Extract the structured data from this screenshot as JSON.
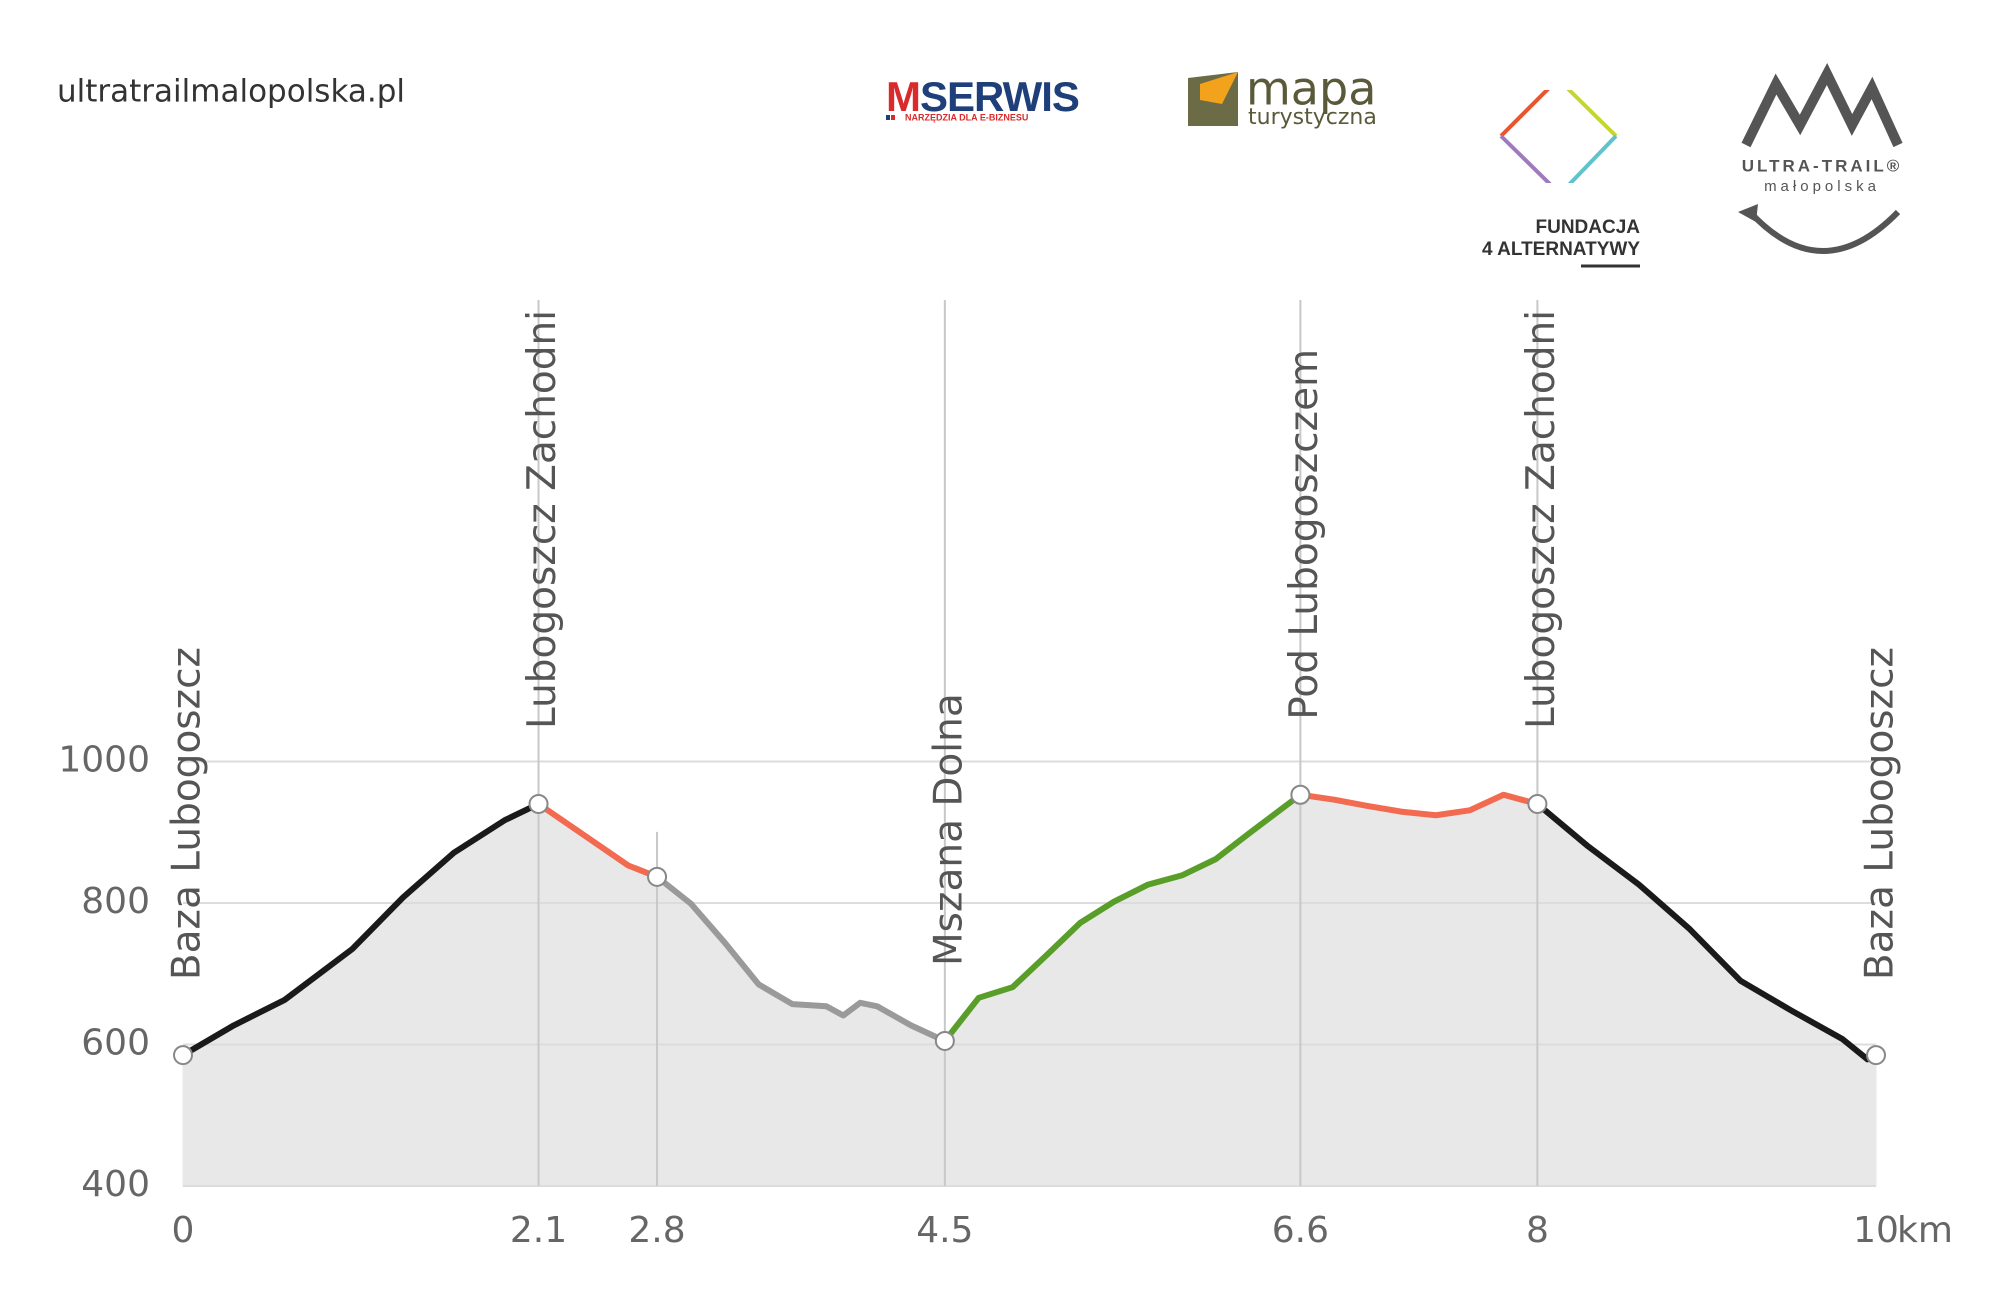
{
  "header": {
    "site": "ultratrailmalopolska.pl"
  },
  "logos": {
    "mserwis": {
      "initial": "M",
      "rest": "SERWIS",
      "tagline": "NARZĘDZIA DLA E-BIZNESU"
    },
    "mapa": {
      "title": "mapa",
      "subtitle": "turystyczna"
    },
    "fundacja": {
      "line1": "FUNDACJA",
      "line2": "4 ALTERNATYWY"
    },
    "ultratrail": {
      "title": "ULTRA-TRAIL®",
      "subtitle": "małopolska"
    }
  },
  "chart_data": {
    "type": "elevation-profile",
    "xlabel": "km",
    "xlim": [
      0,
      10
    ],
    "ylim": [
      400,
      1000
    ],
    "xticks": [
      0,
      2.1,
      2.8,
      4.5,
      6.6,
      8,
      10
    ],
    "yticks": [
      400,
      600,
      800,
      1000
    ],
    "grid": true,
    "area_color": "#e8e8e8",
    "segments": [
      {
        "color": "#1a1a1a",
        "x": [
          0,
          0.3,
          0.6,
          1.0,
          1.3,
          1.6,
          1.9,
          2.1
        ],
        "values": [
          585,
          627,
          663,
          735,
          808,
          871,
          917,
          940
        ]
      },
      {
        "color": "#f26a50",
        "x": [
          2.1,
          2.63,
          2.8
        ],
        "values": [
          940,
          853,
          837
        ]
      },
      {
        "color": "#9a9a9a",
        "x": [
          2.8,
          3.0,
          3.2,
          3.4,
          3.6,
          3.8,
          3.9,
          4.0,
          4.1,
          4.3,
          4.5
        ],
        "values": [
          837,
          799,
          744,
          685,
          657,
          654,
          641,
          659,
          654,
          627,
          605
        ]
      },
      {
        "color": "#5a9e2a",
        "x": [
          4.5,
          4.7,
          4.9,
          5.1,
          5.3,
          5.5,
          5.7,
          5.9,
          6.1,
          6.3,
          6.6
        ],
        "values": [
          605,
          666,
          681,
          726,
          772,
          802,
          826,
          839,
          862,
          899,
          953
        ]
      },
      {
        "color": "#f26a50",
        "x": [
          6.6,
          6.8,
          7.0,
          7.2,
          7.4,
          7.6,
          7.8,
          8.0
        ],
        "values": [
          953,
          946,
          937,
          929,
          924,
          931,
          953,
          940
        ]
      },
      {
        "color": "#1a1a1a",
        "x": [
          8.0,
          8.3,
          8.6,
          8.9,
          9.2,
          9.5,
          9.8,
          9.95,
          10
        ],
        "values": [
          940,
          880,
          826,
          763,
          690,
          648,
          608,
          579,
          585
        ]
      }
    ],
    "waypoints": [
      {
        "x": 0,
        "value": 585,
        "label": "Baza Lubogoszcz"
      },
      {
        "x": 2.1,
        "value": 940,
        "label": "Lubogoszcz Zachodni"
      },
      {
        "x": 2.8,
        "value": 837
      },
      {
        "x": 4.5,
        "value": 605,
        "label": "Mszana Dolna"
      },
      {
        "x": 6.6,
        "value": 953,
        "label": "Pod Lubogoszczem"
      },
      {
        "x": 8,
        "value": 940,
        "label": "Lubogoszcz Zachodni"
      },
      {
        "x": 10,
        "value": 585,
        "label": "Baza Lubogoszcz"
      }
    ]
  }
}
